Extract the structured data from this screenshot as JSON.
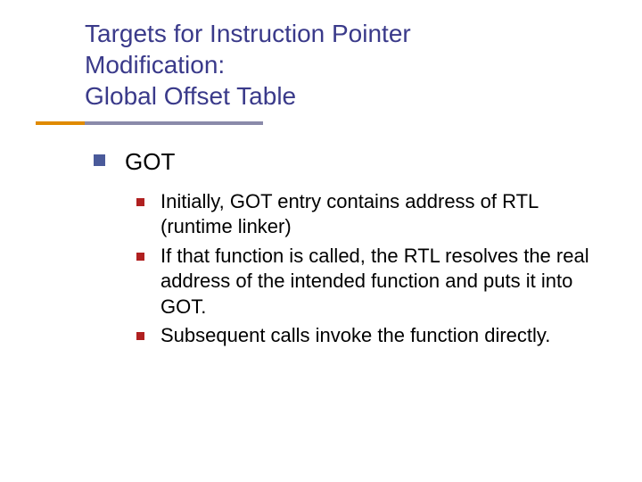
{
  "colors": {
    "title_color": "#3a3a8a",
    "underline_accent": "#e08a00",
    "underline_main": "#8a8aaa",
    "bullet_lvl1": "#4a5a9a",
    "bullet_lvl2": "#b02020",
    "body_text": "#000000",
    "background": "#ffffff"
  },
  "typography": {
    "title_fontsize": 28,
    "lvl1_fontsize": 26,
    "lvl2_fontsize": 22,
    "font_family": "Verdana"
  },
  "title": {
    "line1": "Targets for Instruction Pointer",
    "line2": "Modification:",
    "line3": "Global Offset Table"
  },
  "content": {
    "lvl1": {
      "text": "GOT",
      "children": [
        {
          "text": "Initially, GOT entry contains address of RTL (runtime linker)"
        },
        {
          "text": "If that function is called, the RTL resolves the real address of the intended function and puts it into GOT."
        },
        {
          "text": "Subsequent calls invoke the function directly."
        }
      ]
    }
  }
}
